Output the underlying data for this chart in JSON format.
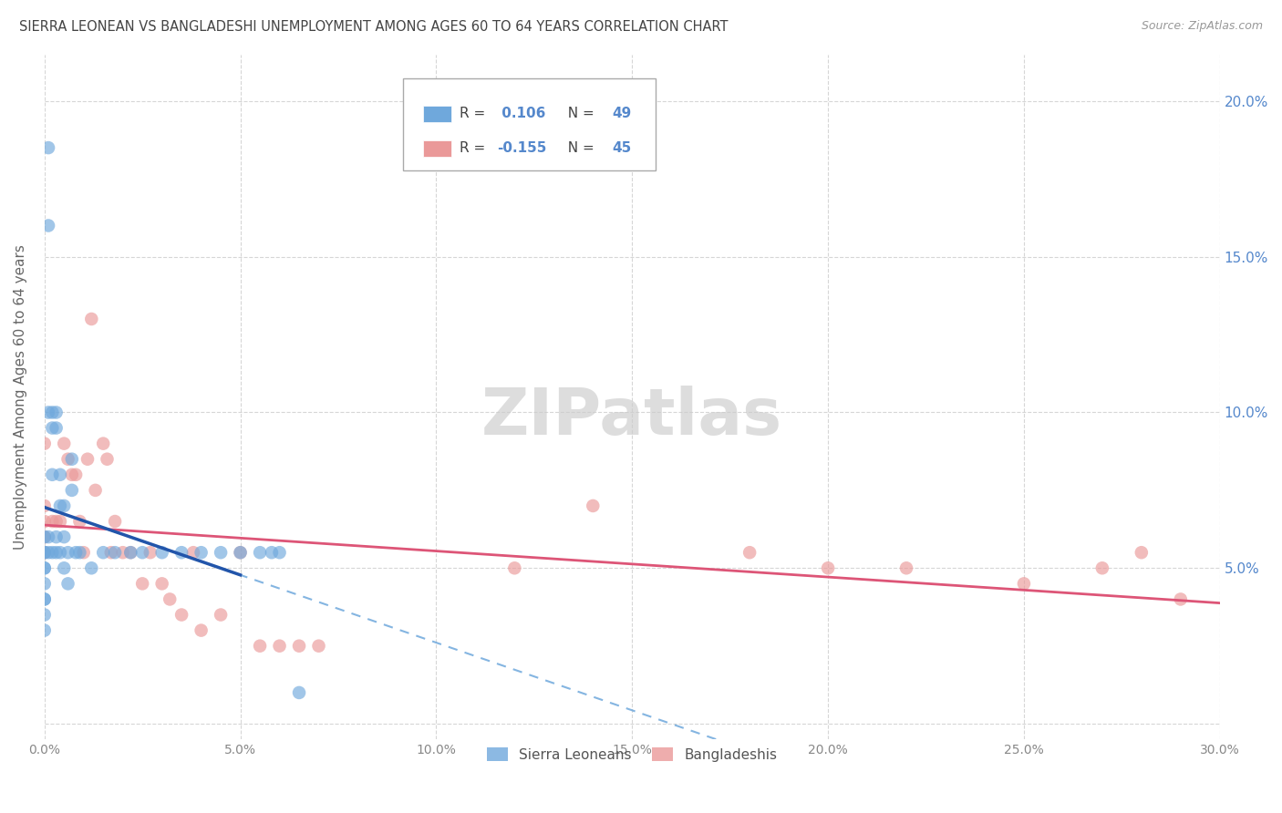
{
  "title": "SIERRA LEONEAN VS BANGLADESHI UNEMPLOYMENT AMONG AGES 60 TO 64 YEARS CORRELATION CHART",
  "source": "Source: ZipAtlas.com",
  "ylabel": "Unemployment Among Ages 60 to 64 years",
  "xlim": [
    0.0,
    0.3
  ],
  "ylim": [
    -0.005,
    0.215
  ],
  "xticks": [
    0.0,
    0.05,
    0.1,
    0.15,
    0.2,
    0.25,
    0.3
  ],
  "yticks": [
    0.0,
    0.05,
    0.1,
    0.15,
    0.2
  ],
  "xticklabels": [
    "0.0%",
    "5.0%",
    "10.0%",
    "15.0%",
    "20.0%",
    "25.0%",
    "30.0%"
  ],
  "sierra_R": 0.106,
  "sierra_N": 49,
  "bangla_R": -0.155,
  "bangla_N": 45,
  "sierra_color": "#6fa8dc",
  "bangla_color": "#ea9999",
  "sierra_line_color": "#2255aa",
  "bangla_line_color": "#dd5577",
  "background_color": "#ffffff",
  "title_color": "#444444",
  "axis_label_color": "#666666",
  "grid_color": "#cccccc",
  "right_tick_color": "#5588cc",
  "bottom_tick_color": "#888888",
  "watermark_text": "ZIPatlas",
  "sierra_x": [
    0.0,
    0.0,
    0.0,
    0.0,
    0.0,
    0.0,
    0.0,
    0.0,
    0.0,
    0.0,
    0.001,
    0.001,
    0.001,
    0.001,
    0.001,
    0.002,
    0.002,
    0.002,
    0.002,
    0.003,
    0.003,
    0.003,
    0.003,
    0.004,
    0.004,
    0.004,
    0.005,
    0.005,
    0.005,
    0.006,
    0.006,
    0.007,
    0.007,
    0.008,
    0.009,
    0.012,
    0.015,
    0.018,
    0.022,
    0.025,
    0.03,
    0.035,
    0.04,
    0.045,
    0.05,
    0.055,
    0.058,
    0.06,
    0.065
  ],
  "sierra_y": [
    0.06,
    0.055,
    0.055,
    0.05,
    0.05,
    0.045,
    0.04,
    0.04,
    0.035,
    0.03,
    0.185,
    0.16,
    0.1,
    0.06,
    0.055,
    0.1,
    0.095,
    0.08,
    0.055,
    0.1,
    0.095,
    0.06,
    0.055,
    0.08,
    0.07,
    0.055,
    0.07,
    0.06,
    0.05,
    0.055,
    0.045,
    0.085,
    0.075,
    0.055,
    0.055,
    0.05,
    0.055,
    0.055,
    0.055,
    0.055,
    0.055,
    0.055,
    0.055,
    0.055,
    0.055,
    0.055,
    0.055,
    0.055,
    0.01
  ],
  "bangla_x": [
    0.0,
    0.0,
    0.0,
    0.0,
    0.0,
    0.002,
    0.003,
    0.004,
    0.005,
    0.006,
    0.007,
    0.008,
    0.009,
    0.01,
    0.011,
    0.012,
    0.013,
    0.015,
    0.016,
    0.017,
    0.018,
    0.02,
    0.022,
    0.025,
    0.027,
    0.03,
    0.032,
    0.035,
    0.038,
    0.04,
    0.045,
    0.05,
    0.055,
    0.06,
    0.065,
    0.07,
    0.12,
    0.14,
    0.18,
    0.2,
    0.22,
    0.25,
    0.27,
    0.28,
    0.29
  ],
  "bangla_y": [
    0.09,
    0.07,
    0.065,
    0.06,
    0.055,
    0.065,
    0.065,
    0.065,
    0.09,
    0.085,
    0.08,
    0.08,
    0.065,
    0.055,
    0.085,
    0.13,
    0.075,
    0.09,
    0.085,
    0.055,
    0.065,
    0.055,
    0.055,
    0.045,
    0.055,
    0.045,
    0.04,
    0.035,
    0.055,
    0.03,
    0.035,
    0.055,
    0.025,
    0.025,
    0.025,
    0.025,
    0.05,
    0.07,
    0.055,
    0.05,
    0.05,
    0.045,
    0.05,
    0.055,
    0.04
  ],
  "legend_R_color": "#5588cc",
  "legend_N_color": "#5588cc"
}
